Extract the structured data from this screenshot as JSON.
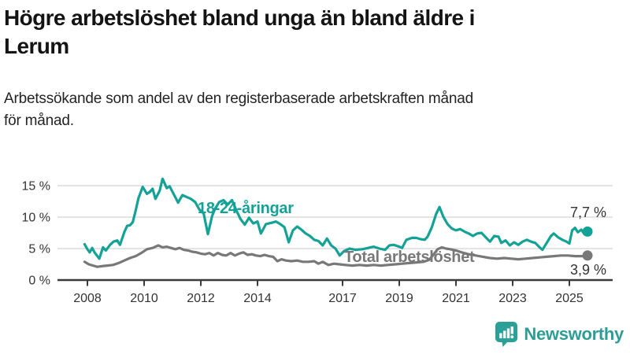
{
  "header": {
    "title_lines": [
      "Högre arbetslöshet bland unga än bland äldre i",
      "Lerum"
    ],
    "subtitle_lines": [
      "Arbetssökande som andel av den registerbaserade arbetskraften månad",
      "för månad."
    ]
  },
  "chart_data": {
    "type": "line",
    "title": "Högre arbetslöshet bland unga än bland äldre i Lerum",
    "subtitle": "Arbetssökande som andel av den registerbaserade arbetskraften månad för månad.",
    "x_unit": "decimal year (monthly observations)",
    "xlim": [
      2006.9,
      2026.5
    ],
    "ylim": [
      0,
      16.5
    ],
    "grid": true,
    "x_ticks": [
      2008,
      2010,
      2012,
      2014,
      2017,
      2019,
      2021,
      2023,
      2025
    ],
    "x_tick_labels": [
      "2008",
      "2010",
      "2012",
      "2014",
      "2017",
      "2019",
      "2021",
      "2023",
      "2025"
    ],
    "y_ticks": [
      0,
      5,
      10,
      15
    ],
    "y_tick_labels": [
      "0 %",
      "5 %",
      "10 %",
      "15 %"
    ],
    "axis_color": "#3a3a3a",
    "grid_color": "#dcdcdc",
    "tick_label_color": "#333333",
    "series": [
      {
        "name": "18-24-åringar",
        "color": "#14a297",
        "end_label": "7,7 %",
        "last_value": 7.7,
        "points": [
          [
            2007.9,
            5.7
          ],
          [
            2008.0,
            4.9
          ],
          [
            2008.08,
            4.4
          ],
          [
            2008.17,
            5.1
          ],
          [
            2008.25,
            4.4
          ],
          [
            2008.42,
            3.4
          ],
          [
            2008.55,
            5.2
          ],
          [
            2008.65,
            4.7
          ],
          [
            2008.8,
            5.6
          ],
          [
            2008.92,
            6.1
          ],
          [
            2009.05,
            6.3
          ],
          [
            2009.15,
            5.6
          ],
          [
            2009.3,
            7.6
          ],
          [
            2009.4,
            8.6
          ],
          [
            2009.5,
            8.7
          ],
          [
            2009.6,
            9.2
          ],
          [
            2009.7,
            11.0
          ],
          [
            2009.8,
            13.0
          ],
          [
            2009.95,
            14.8
          ],
          [
            2010.1,
            13.7
          ],
          [
            2010.2,
            14.0
          ],
          [
            2010.3,
            14.5
          ],
          [
            2010.4,
            12.9
          ],
          [
            2010.55,
            14.2
          ],
          [
            2010.65,
            16.1
          ],
          [
            2010.8,
            14.6
          ],
          [
            2010.9,
            14.9
          ],
          [
            2011.05,
            13.6
          ],
          [
            2011.2,
            12.3
          ],
          [
            2011.35,
            13.5
          ],
          [
            2011.5,
            13.2
          ],
          [
            2011.65,
            12.9
          ],
          [
            2011.8,
            12.4
          ],
          [
            2011.95,
            11.2
          ],
          [
            2012.1,
            10.6
          ],
          [
            2012.25,
            7.3
          ],
          [
            2012.4,
            10.2
          ],
          [
            2012.5,
            11.3
          ],
          [
            2012.65,
            12.4
          ],
          [
            2012.8,
            12.7
          ],
          [
            2012.95,
            12.0
          ],
          [
            2013.1,
            12.7
          ],
          [
            2013.25,
            11.1
          ],
          [
            2013.4,
            9.7
          ],
          [
            2013.55,
            8.8
          ],
          [
            2013.7,
            9.9
          ],
          [
            2013.85,
            9.0
          ],
          [
            2014.0,
            9.3
          ],
          [
            2014.12,
            7.4
          ],
          [
            2014.3,
            8.9
          ],
          [
            2014.5,
            9.1
          ],
          [
            2014.65,
            9.3
          ],
          [
            2014.8,
            8.9
          ],
          [
            2014.95,
            8.4
          ],
          [
            2015.1,
            6.0
          ],
          [
            2015.25,
            7.9
          ],
          [
            2015.4,
            8.5
          ],
          [
            2015.55,
            8.0
          ],
          [
            2015.7,
            7.4
          ],
          [
            2015.85,
            7.0
          ],
          [
            2016.0,
            6.4
          ],
          [
            2016.15,
            6.2
          ],
          [
            2016.3,
            5.5
          ],
          [
            2016.45,
            6.6
          ],
          [
            2016.6,
            5.5
          ],
          [
            2016.75,
            5.0
          ],
          [
            2016.9,
            3.9
          ],
          [
            2017.05,
            4.6
          ],
          [
            2017.25,
            5.0
          ],
          [
            2017.45,
            4.8
          ],
          [
            2017.7,
            4.9
          ],
          [
            2017.9,
            5.1
          ],
          [
            2018.1,
            5.3
          ],
          [
            2018.3,
            5.0
          ],
          [
            2018.5,
            4.8
          ],
          [
            2018.65,
            5.5
          ],
          [
            2018.8,
            5.6
          ],
          [
            2019.0,
            5.3
          ],
          [
            2019.1,
            5.1
          ],
          [
            2019.25,
            6.4
          ],
          [
            2019.45,
            6.7
          ],
          [
            2019.6,
            6.7
          ],
          [
            2019.75,
            6.5
          ],
          [
            2019.9,
            6.4
          ],
          [
            2020.0,
            6.9
          ],
          [
            2020.15,
            8.4
          ],
          [
            2020.3,
            10.5
          ],
          [
            2020.42,
            11.6
          ],
          [
            2020.55,
            10.1
          ],
          [
            2020.7,
            8.9
          ],
          [
            2020.85,
            8.2
          ],
          [
            2021.0,
            7.9
          ],
          [
            2021.15,
            8.1
          ],
          [
            2021.3,
            7.7
          ],
          [
            2021.45,
            7.4
          ],
          [
            2021.6,
            7.0
          ],
          [
            2021.75,
            7.4
          ],
          [
            2021.9,
            7.5
          ],
          [
            2022.05,
            6.8
          ],
          [
            2022.2,
            6.1
          ],
          [
            2022.35,
            7.0
          ],
          [
            2022.5,
            6.9
          ],
          [
            2022.6,
            5.9
          ],
          [
            2022.75,
            6.3
          ],
          [
            2022.9,
            5.5
          ],
          [
            2023.05,
            6.0
          ],
          [
            2023.2,
            5.6
          ],
          [
            2023.35,
            6.1
          ],
          [
            2023.5,
            6.4
          ],
          [
            2023.65,
            6.1
          ],
          [
            2023.8,
            5.9
          ],
          [
            2023.95,
            5.2
          ],
          [
            2024.05,
            4.8
          ],
          [
            2024.2,
            5.9
          ],
          [
            2024.35,
            7.0
          ],
          [
            2024.45,
            7.4
          ],
          [
            2024.6,
            6.8
          ],
          [
            2024.75,
            6.4
          ],
          [
            2024.9,
            6.1
          ],
          [
            2025.0,
            5.8
          ],
          [
            2025.1,
            7.9
          ],
          [
            2025.2,
            8.3
          ],
          [
            2025.3,
            7.6
          ],
          [
            2025.42,
            8.0
          ],
          [
            2025.53,
            7.3
          ],
          [
            2025.64,
            7.7
          ]
        ]
      },
      {
        "name": "Total arbetslöshet",
        "color": "#787878",
        "end_label": "3,9 %",
        "last_value": 3.9,
        "points": [
          [
            2007.9,
            2.9
          ],
          [
            2008.05,
            2.5
          ],
          [
            2008.2,
            2.3
          ],
          [
            2008.35,
            2.1
          ],
          [
            2008.5,
            2.2
          ],
          [
            2008.7,
            2.3
          ],
          [
            2008.9,
            2.4
          ],
          [
            2009.1,
            2.7
          ],
          [
            2009.3,
            3.1
          ],
          [
            2009.5,
            3.5
          ],
          [
            2009.7,
            3.8
          ],
          [
            2009.9,
            4.3
          ],
          [
            2010.1,
            4.9
          ],
          [
            2010.3,
            5.1
          ],
          [
            2010.5,
            5.5
          ],
          [
            2010.65,
            5.2
          ],
          [
            2010.8,
            5.3
          ],
          [
            2010.95,
            5.1
          ],
          [
            2011.1,
            4.9
          ],
          [
            2011.25,
            5.1
          ],
          [
            2011.4,
            4.8
          ],
          [
            2011.55,
            4.7
          ],
          [
            2011.7,
            4.5
          ],
          [
            2011.85,
            4.4
          ],
          [
            2012.0,
            4.2
          ],
          [
            2012.15,
            4.1
          ],
          [
            2012.3,
            4.3
          ],
          [
            2012.45,
            3.9
          ],
          [
            2012.6,
            4.3
          ],
          [
            2012.75,
            4.0
          ],
          [
            2012.9,
            3.9
          ],
          [
            2013.05,
            4.3
          ],
          [
            2013.2,
            3.9
          ],
          [
            2013.35,
            4.2
          ],
          [
            2013.5,
            4.4
          ],
          [
            2013.65,
            4.0
          ],
          [
            2013.8,
            4.1
          ],
          [
            2013.95,
            3.9
          ],
          [
            2014.1,
            3.8
          ],
          [
            2014.25,
            4.0
          ],
          [
            2014.4,
            3.8
          ],
          [
            2014.55,
            3.7
          ],
          [
            2014.7,
            3.0
          ],
          [
            2014.85,
            3.3
          ],
          [
            2015.0,
            3.1
          ],
          [
            2015.2,
            3.0
          ],
          [
            2015.4,
            3.1
          ],
          [
            2015.6,
            2.9
          ],
          [
            2015.8,
            2.9
          ],
          [
            2016.0,
            3.0
          ],
          [
            2016.15,
            2.6
          ],
          [
            2016.3,
            2.9
          ],
          [
            2016.5,
            2.4
          ],
          [
            2016.7,
            2.6
          ],
          [
            2016.9,
            2.5
          ],
          [
            2017.1,
            2.4
          ],
          [
            2017.35,
            2.3
          ],
          [
            2017.6,
            2.4
          ],
          [
            2017.85,
            2.3
          ],
          [
            2018.1,
            2.4
          ],
          [
            2018.35,
            2.3
          ],
          [
            2018.6,
            2.4
          ],
          [
            2018.85,
            2.5
          ],
          [
            2019.1,
            2.6
          ],
          [
            2019.35,
            2.7
          ],
          [
            2019.6,
            2.8
          ],
          [
            2019.85,
            2.9
          ],
          [
            2020.05,
            3.2
          ],
          [
            2020.2,
            4.0
          ],
          [
            2020.35,
            4.9
          ],
          [
            2020.5,
            5.2
          ],
          [
            2020.65,
            5.0
          ],
          [
            2020.8,
            4.9
          ],
          [
            2021.0,
            4.7
          ],
          [
            2021.2,
            4.4
          ],
          [
            2021.45,
            4.1
          ],
          [
            2021.7,
            3.9
          ],
          [
            2021.95,
            3.7
          ],
          [
            2022.2,
            3.5
          ],
          [
            2022.45,
            3.4
          ],
          [
            2022.7,
            3.5
          ],
          [
            2022.95,
            3.4
          ],
          [
            2023.2,
            3.3
          ],
          [
            2023.45,
            3.4
          ],
          [
            2023.7,
            3.5
          ],
          [
            2023.95,
            3.6
          ],
          [
            2024.2,
            3.7
          ],
          [
            2024.45,
            3.8
          ],
          [
            2024.7,
            3.9
          ],
          [
            2024.95,
            3.9
          ],
          [
            2025.2,
            3.8
          ],
          [
            2025.45,
            3.8
          ],
          [
            2025.64,
            3.9
          ]
        ]
      }
    ],
    "legend_position": "labels drawn on chart next to lines"
  },
  "footer": {
    "brand": "Newsworthy",
    "logo_icon": "bar-chart-speech-bubble-icon",
    "brand_color": "#2e9d95"
  }
}
